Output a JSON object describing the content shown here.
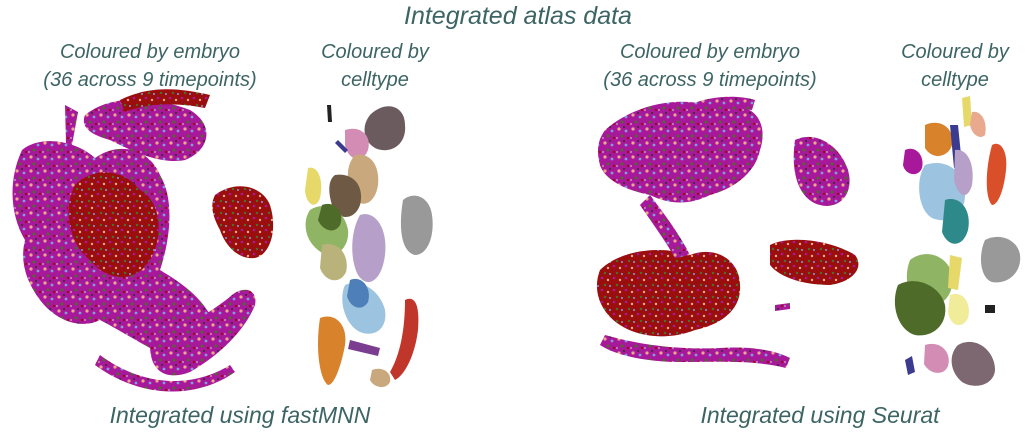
{
  "title": "Integrated atlas data",
  "panels": [
    {
      "embryo_label_line1": "Coloured by embryo",
      "embryo_label_line2": "(36 across 9 timepoints)",
      "celltype_label_line1": "Coloured by",
      "celltype_label_line2": "celltype",
      "method_label": "Integrated using fastMNN"
    },
    {
      "embryo_label_line1": "Coloured by embryo",
      "embryo_label_line2": "(36 across 9 timepoints)",
      "celltype_label_line1": "Coloured by",
      "celltype_label_line2": "celltype",
      "method_label": "Integrated using Seurat"
    }
  ],
  "colors": {
    "text": "#3d6464",
    "embryo_palette": [
      "#a8189a",
      "#9b0e0e",
      "#e8a98f",
      "#7f9edb",
      "#4f6b2a",
      "#c07ac8",
      "#2e2e2e"
    ],
    "celltype_palette": [
      "#6b5b5f",
      "#999999",
      "#4f6b2a",
      "#8fb463",
      "#b6a0c9",
      "#9cc3e0",
      "#4e7fb8",
      "#d8822b",
      "#c0362b",
      "#e6d96a",
      "#d38cb4",
      "#8b5a2b",
      "#c9a87d",
      "#3b3b8f"
    ]
  }
}
